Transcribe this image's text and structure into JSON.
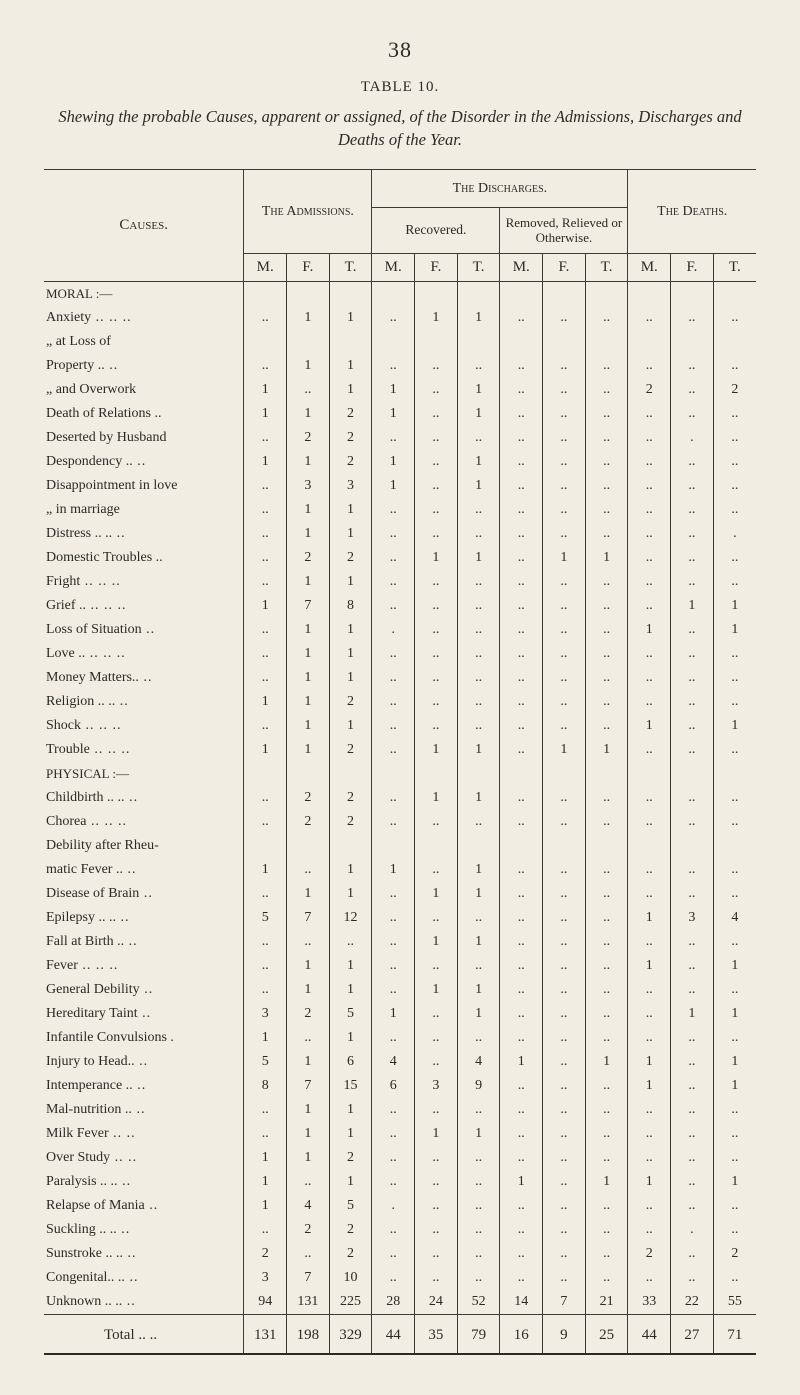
{
  "page_number": "38",
  "table_label": "TABLE 10.",
  "caption_html": "Shewing the probable Causes, apparent or assigned, of the Disorder in the Admissions, Discharges and Deaths of the Year.",
  "headers": {
    "causes": "Causes.",
    "admissions": "The Admissions.",
    "discharges": "The Discharges.",
    "recovered": "Recovered.",
    "removed": "Removed, Relieved or Otherwise.",
    "deaths": "The Deaths.",
    "M": "M.",
    "F": "F.",
    "T": "T."
  },
  "sections": {
    "moral": "MORAL :—",
    "physical": "PHYSICAL :—"
  },
  "rows": [
    {
      "section": "moral"
    },
    {
      "label": "Anxiety",
      "lead": "..  ..  ..",
      "adm": [
        "..",
        "1",
        "1"
      ],
      "rec": [
        "..",
        "1",
        "1"
      ],
      "rem": [
        "..",
        "..",
        ".."
      ],
      "dth": [
        "..",
        "..",
        ".."
      ]
    },
    {
      "label": "„      at Loss of",
      "lead": "",
      "adm": [
        "",
        "",
        ""
      ],
      "rec": [
        "",
        "",
        ""
      ],
      "rem": [
        "",
        "",
        ""
      ],
      "dth": [
        "",
        "",
        ""
      ]
    },
    {
      "label": "    Property ..",
      "lead": "  ..",
      "adm": [
        "..",
        "1",
        "1"
      ],
      "rec": [
        "..",
        "..",
        ".."
      ],
      "rem": [
        "..",
        "..",
        ".."
      ],
      "dth": [
        "..",
        "..",
        ".."
      ]
    },
    {
      "label": "„   and Overwork",
      "lead": "",
      "adm": [
        "1",
        "..",
        "1"
      ],
      "rec": [
        "1",
        "..",
        "1"
      ],
      "rem": [
        "..",
        "..",
        ".."
      ],
      "dth": [
        "2",
        "..",
        "2"
      ]
    },
    {
      "label": "Death of Relations ..",
      "lead": "",
      "adm": [
        "1",
        "1",
        "2"
      ],
      "rec": [
        "1",
        "..",
        "1"
      ],
      "rem": [
        "..",
        "..",
        ".."
      ],
      "dth": [
        "..",
        "..",
        ".."
      ]
    },
    {
      "label": "Deserted by Husband",
      "lead": "",
      "adm": [
        "..",
        "2",
        "2"
      ],
      "rec": [
        "..",
        "..",
        ".."
      ],
      "rem": [
        "..",
        "..",
        ".."
      ],
      "dth": [
        "..",
        ".",
        ".."
      ]
    },
    {
      "label": "Despondency ..",
      "lead": "  ..",
      "adm": [
        "1",
        "1",
        "2"
      ],
      "rec": [
        "1",
        "..",
        "1"
      ],
      "rem": [
        "..",
        "..",
        ".."
      ],
      "dth": [
        "..",
        "..",
        ".."
      ]
    },
    {
      "label": "Disappointment in love",
      "lead": "",
      "adm": [
        "..",
        "3",
        "3"
      ],
      "rec": [
        "1",
        "..",
        "1"
      ],
      "rem": [
        "..",
        "..",
        ".."
      ],
      "dth": [
        "..",
        "..",
        ".."
      ]
    },
    {
      "label": "„        in marriage",
      "lead": "",
      "adm": [
        "..",
        "1",
        "1"
      ],
      "rec": [
        "..",
        "..",
        ".."
      ],
      "rem": [
        "..",
        "..",
        ".."
      ],
      "dth": [
        "..",
        "..",
        ".."
      ]
    },
    {
      "label": "Distress  ..  ..",
      "lead": "  ..",
      "adm": [
        "..",
        "1",
        "1"
      ],
      "rec": [
        "..",
        "..",
        ".."
      ],
      "rem": [
        "..",
        "..",
        ".."
      ],
      "dth": [
        "..",
        "..",
        "."
      ]
    },
    {
      "label": "Domestic Troubles ..",
      "lead": "",
      "adm": [
        "..",
        "2",
        "2"
      ],
      "rec": [
        "..",
        "1",
        "1"
      ],
      "rem": [
        "..",
        "1",
        "1"
      ],
      "dth": [
        "..",
        "..",
        ".."
      ]
    },
    {
      "label": "Fright",
      "lead": "     ..  ..     ..",
      "adm": [
        "..",
        "1",
        "1"
      ],
      "rec": [
        "..",
        "..",
        ".."
      ],
      "rem": [
        "..",
        "..",
        ".."
      ],
      "dth": [
        "..",
        "..",
        ".."
      ]
    },
    {
      "label": "Grief ..",
      "lead": "  ..  ..     ..",
      "adm": [
        "1",
        "7",
        "8"
      ],
      "rec": [
        "..",
        "..",
        ".."
      ],
      "rem": [
        "..",
        "..",
        ".."
      ],
      "dth": [
        "..",
        "1",
        "1"
      ]
    },
    {
      "label": "Loss of Situation",
      "lead": "    ..",
      "adm": [
        "..",
        "1",
        "1"
      ],
      "rec": [
        ".",
        "..",
        ".."
      ],
      "rem": [
        "..",
        "..",
        ".."
      ],
      "dth": [
        "1",
        "..",
        "1"
      ]
    },
    {
      "label": "Love ..",
      "lead": "     ..    ..    ..",
      "adm": [
        "..",
        "1",
        "1"
      ],
      "rec": [
        "..",
        "..",
        ".."
      ],
      "rem": [
        "..",
        "..",
        ".."
      ],
      "dth": [
        "..",
        "..",
        ".."
      ]
    },
    {
      "label": "Money Matters..",
      "lead": "   ..",
      "adm": [
        "..",
        "1",
        "1"
      ],
      "rec": [
        "..",
        "..",
        ".."
      ],
      "rem": [
        "..",
        "..",
        ".."
      ],
      "dth": [
        "..",
        "..",
        ".."
      ]
    },
    {
      "label": "Religion  ..  ..",
      "lead": "    ..",
      "adm": [
        "1",
        "1",
        "2"
      ],
      "rec": [
        "..",
        "..",
        ".."
      ],
      "rem": [
        "..",
        "..",
        ".."
      ],
      "dth": [
        "..",
        "..",
        ".."
      ]
    },
    {
      "label": "Shock",
      "lead": "       ..  ..    ..",
      "adm": [
        "..",
        "1",
        "1"
      ],
      "rec": [
        "..",
        "..",
        ".."
      ],
      "rem": [
        "..",
        "..",
        ".."
      ],
      "dth": [
        "1",
        "..",
        "1"
      ]
    },
    {
      "label": "Trouble",
      "lead": "    ..  ..    ..",
      "adm": [
        "1",
        "1",
        "2"
      ],
      "rec": [
        "..",
        "1",
        "1"
      ],
      "rem": [
        "..",
        "1",
        "1"
      ],
      "dth": [
        "..",
        "..",
        ".."
      ]
    },
    {
      "section": "physical"
    },
    {
      "label": "Childbirth ..  ..",
      "lead": "  ..",
      "adm": [
        "..",
        "2",
        "2"
      ],
      "rec": [
        "..",
        "1",
        "1"
      ],
      "rem": [
        "..",
        "..",
        ".."
      ],
      "dth": [
        "..",
        "..",
        ".."
      ]
    },
    {
      "label": "Chorea",
      "lead": "     ..  ..    ..",
      "adm": [
        "..",
        "2",
        "2"
      ],
      "rec": [
        "..",
        "..",
        ".."
      ],
      "rem": [
        "..",
        "..",
        ".."
      ],
      "dth": [
        "..",
        "..",
        ".."
      ]
    },
    {
      "label": "Debility after  Rheu-",
      "lead": "",
      "adm": [
        "",
        "",
        ""
      ],
      "rec": [
        "",
        "",
        ""
      ],
      "rem": [
        "",
        "",
        ""
      ],
      "dth": [
        "",
        "",
        ""
      ]
    },
    {
      "label": "    matic Fever ..",
      "lead": "   ..",
      "adm": [
        "1",
        "..",
        "1"
      ],
      "rec": [
        "1",
        "..",
        "1"
      ],
      "rem": [
        "..",
        "..",
        ".."
      ],
      "dth": [
        "..",
        "..",
        ".."
      ]
    },
    {
      "label": "Disease of Brain",
      "lead": "    ..",
      "adm": [
        "..",
        "1",
        "1"
      ],
      "rec": [
        "..",
        "1",
        "1"
      ],
      "rem": [
        "..",
        "..",
        ".."
      ],
      "dth": [
        "..",
        "..",
        ".."
      ]
    },
    {
      "label": "Epilepsy ..  ..",
      "lead": "    ..",
      "adm": [
        "5",
        "7",
        "12"
      ],
      "rec": [
        "..",
        "..",
        ".."
      ],
      "rem": [
        "..",
        "..",
        ".."
      ],
      "dth": [
        "1",
        "3",
        "4"
      ]
    },
    {
      "label": "Fall at Birth  ..",
      "lead": "   ..",
      "adm": [
        "..",
        "..",
        ".."
      ],
      "rec": [
        "..",
        "1",
        "1"
      ],
      "rem": [
        "..",
        "..",
        ".."
      ],
      "dth": [
        "..",
        "..",
        ".."
      ]
    },
    {
      "label": "Fever",
      "lead": "        ..   ..     ..",
      "adm": [
        "..",
        "1",
        "1"
      ],
      "rec": [
        "..",
        "..",
        ".."
      ],
      "rem": [
        "..",
        "..",
        ".."
      ],
      "dth": [
        "1",
        "..",
        "1"
      ]
    },
    {
      "label": "General Debility",
      "lead": "    ..",
      "adm": [
        "..",
        "1",
        "1"
      ],
      "rec": [
        "..",
        "1",
        "1"
      ],
      "rem": [
        "..",
        "..",
        ".."
      ],
      "dth": [
        "..",
        "..",
        ".."
      ]
    },
    {
      "label": "Hereditary Taint",
      "lead": "   ..",
      "adm": [
        "3",
        "2",
        "5"
      ],
      "rec": [
        "1",
        "..",
        "1"
      ],
      "rem": [
        "..",
        "..",
        ".."
      ],
      "dth": [
        "..",
        "1",
        "1"
      ]
    },
    {
      "label": "Infantile Convulsions .",
      "lead": "",
      "adm": [
        "1",
        "..",
        "1"
      ],
      "rec": [
        "..",
        "..",
        ".."
      ],
      "rem": [
        "..",
        "..",
        ".."
      ],
      "dth": [
        "..",
        "..",
        ".."
      ]
    },
    {
      "label": "Injury to Head..",
      "lead": "   ..",
      "adm": [
        "5",
        "1",
        "6"
      ],
      "rec": [
        "4",
        "..",
        "4"
      ],
      "rem": [
        "1",
        "..",
        "1"
      ],
      "dth": [
        "1",
        "..",
        "1"
      ]
    },
    {
      "label": "Intemperance ..",
      "lead": "   ..",
      "adm": [
        "8",
        "7",
        "15"
      ],
      "rec": [
        "6",
        "3",
        "9"
      ],
      "rem": [
        "..",
        "..",
        ".."
      ],
      "dth": [
        "1",
        "..",
        "1"
      ]
    },
    {
      "label": "Mal-nutrition ..",
      "lead": "   ..",
      "adm": [
        "..",
        "1",
        "1"
      ],
      "rec": [
        "..",
        "..",
        ".."
      ],
      "rem": [
        "..",
        "..",
        ".."
      ],
      "dth": [
        "..",
        "..",
        ".."
      ]
    },
    {
      "label": "Milk Fever",
      "lead": "      ..     ..",
      "adm": [
        "..",
        "1",
        "1"
      ],
      "rec": [
        "..",
        "1",
        "1"
      ],
      "rem": [
        "..",
        "..",
        ".."
      ],
      "dth": [
        "..",
        "..",
        ".."
      ]
    },
    {
      "label": "Over Study",
      "lead": "     ..    ..",
      "adm": [
        "1",
        "1",
        "2"
      ],
      "rec": [
        "..",
        "..",
        ".."
      ],
      "rem": [
        "..",
        "..",
        ".."
      ],
      "dth": [
        "..",
        "..",
        ".."
      ]
    },
    {
      "label": "Paralysis ..  ..",
      "lead": "    ..",
      "adm": [
        "1",
        "..",
        "1"
      ],
      "rec": [
        "..",
        "..",
        ".."
      ],
      "rem": [
        "1",
        "..",
        "1"
      ],
      "dth": [
        "1",
        "..",
        "1"
      ]
    },
    {
      "label": "Relapse of Mania",
      "lead": "   ..",
      "adm": [
        "1",
        "4",
        "5"
      ],
      "rec": [
        ".",
        "..",
        ".."
      ],
      "rem": [
        "..",
        "..",
        ".."
      ],
      "dth": [
        "..",
        "..",
        ".."
      ]
    },
    {
      "label": "Suckling ..  ..",
      "lead": "   ..",
      "adm": [
        "..",
        "2",
        "2"
      ],
      "rec": [
        "..",
        "..",
        ".."
      ],
      "rem": [
        "..",
        "..",
        ".."
      ],
      "dth": [
        "..",
        ".",
        ".."
      ]
    },
    {
      "label": "Sunstroke ..  ..",
      "lead": "   ..",
      "adm": [
        "2",
        "..",
        "2"
      ],
      "rec": [
        "..",
        "..",
        ".."
      ],
      "rem": [
        "..",
        "..",
        ".."
      ],
      "dth": [
        "2",
        "..",
        "2"
      ]
    },
    {
      "label": "Congenital..  ..",
      "lead": "   ..",
      "adm": [
        "3",
        "7",
        "10"
      ],
      "rec": [
        "..",
        "..",
        ".."
      ],
      "rem": [
        "..",
        "..",
        ".."
      ],
      "dth": [
        "..",
        "..",
        ".."
      ]
    },
    {
      "label": "Unknown ..  ..",
      "lead": "   ..",
      "adm": [
        "94",
        "131",
        "225"
      ],
      "rec": [
        "28",
        "24",
        "52"
      ],
      "rem": [
        "14",
        "7",
        "21"
      ],
      "dth": [
        "33",
        "22",
        "55"
      ]
    }
  ],
  "total": {
    "label": "Total  ..",
    "lead": "   ..",
    "adm": [
      "131",
      "198",
      "329"
    ],
    "rec": [
      "44",
      "35",
      "79"
    ],
    "rem": [
      "16",
      "9",
      "25"
    ],
    "dth": [
      "44",
      "27",
      "71"
    ]
  },
  "style": {
    "bg": "#f2ede2",
    "ink": "#2a2a26",
    "rule": "#3a3a36"
  }
}
